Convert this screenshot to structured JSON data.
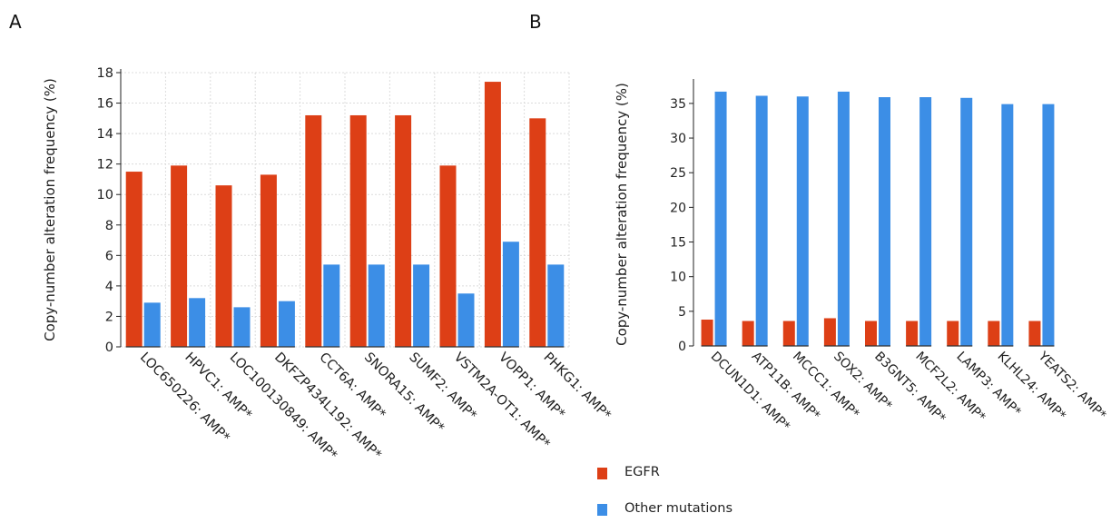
{
  "panels": {
    "a_label": "A",
    "b_label": "B"
  },
  "colors": {
    "egfr": "#dd3f16",
    "other": "#3c8ee6",
    "grid": "#dcdcdc",
    "axis": "#222222"
  },
  "legend": {
    "egfr_label": "EGFR",
    "other_label": "Other mutations"
  },
  "chart_data": [
    {
      "type": "bar",
      "panel": "A",
      "ylabel": "Copy-number alteration frequency (%)",
      "ylim": [
        0,
        18
      ],
      "yticks": [
        0,
        2,
        4,
        6,
        8,
        10,
        12,
        14,
        16,
        18
      ],
      "grid": true,
      "categories": [
        "LOC650226: AMP*",
        "HPVC1: AMP*",
        "LOC100130849: AMP*",
        "DKFZP434L192: AMP*",
        "CCT6A: AMP*",
        "SNORA15: AMP*",
        "SUMF2: AMP*",
        "VSTM2A-OT1: AMP*",
        "VOPP1: AMP*",
        "PHKG1: AMP*"
      ],
      "series": [
        {
          "name": "EGFR",
          "values": [
            11.5,
            11.9,
            10.6,
            11.3,
            15.2,
            15.2,
            15.2,
            11.9,
            17.4,
            15.0
          ]
        },
        {
          "name": "Other mutations",
          "values": [
            2.9,
            3.2,
            2.6,
            3.0,
            5.4,
            5.4,
            5.4,
            3.5,
            6.9,
            5.4
          ]
        }
      ]
    },
    {
      "type": "bar",
      "panel": "B",
      "ylabel": "Copy-number alteration frequency (%)",
      "ylim": [
        0,
        38
      ],
      "yticks": [
        0,
        5,
        10,
        15,
        20,
        25,
        30,
        35
      ],
      "grid": false,
      "categories": [
        "DCUN1D1: AMP*",
        "ATP11B: AMP*",
        "MCCC1: AMP*",
        "SOX2: AMP*",
        "B3GNT5: AMP*",
        "MCF2L2: AMP*",
        "LAMP3: AMP*",
        "KLHL24: AMP*",
        "YEATS2: AMP*"
      ],
      "series": [
        {
          "name": "EGFR",
          "values": [
            3.8,
            3.6,
            3.6,
            4.0,
            3.6,
            3.6,
            3.6,
            3.6,
            3.6
          ]
        },
        {
          "name": "Other mutations",
          "values": [
            36.7,
            36.1,
            36.0,
            36.7,
            35.9,
            35.9,
            35.8,
            34.9,
            34.9
          ]
        }
      ]
    }
  ]
}
